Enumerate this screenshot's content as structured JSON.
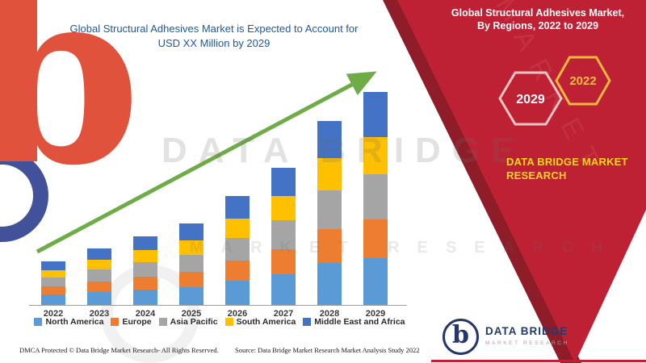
{
  "banner": {
    "band_color": "#be2134",
    "band_edge_color": "#8f1d29",
    "title_line1": "Global Structural Adhesives Market,",
    "title_line2": "By Regions, 2022 to 2029",
    "hexagons": [
      {
        "label": "2029",
        "border": "#f1c3c1",
        "text_color": "#ffffff"
      },
      {
        "label": "2022",
        "border": "#edb83e",
        "text_color": "#f3c041"
      }
    ],
    "brand_line1": "DATA BRIDGE MARKET",
    "brand_line2": "RESEARCH",
    "brand_color": "#ffd61e"
  },
  "chart": {
    "title_line1": "Global Structural Adhesives Market is Expected to Account for",
    "title_line2": "USD XX Million by 2029",
    "title_color": "#1b5aa6"
  },
  "chart_data": {
    "type": "bar",
    "stacked": true,
    "title": "Global Structural Adhesives Market is Expected to Account for USD XX Million by 2029",
    "xlabel": "",
    "ylabel": "",
    "units_note": "No value axis shown in figure (values masked as XX); series values are relative estimates of bar-segment heights",
    "categories": [
      "2022",
      "2023",
      "2024",
      "2025",
      "2026",
      "2027",
      "2028",
      "2029"
    ],
    "series": [
      {
        "name": "North America",
        "color": "#5b9bd5",
        "values": [
          13,
          16,
          19,
          22,
          30,
          38,
          52,
          58
        ]
      },
      {
        "name": "Europe",
        "color": "#ed7d31",
        "values": [
          10,
          13,
          16,
          19,
          25,
          31,
          42,
          48
        ]
      },
      {
        "name": "Asia Pacific",
        "color": "#a5a5a5",
        "values": [
          11,
          15,
          18,
          21,
          28,
          36,
          48,
          56
        ]
      },
      {
        "name": "South America",
        "color": "#ffc000",
        "values": [
          9,
          12,
          15,
          18,
          24,
          30,
          40,
          46
        ]
      },
      {
        "name": "Middle East and Africa",
        "color": "#4472c4",
        "values": [
          11,
          14,
          17,
          21,
          28,
          35,
          46,
          56
        ]
      }
    ],
    "totals": [
      54,
      70,
      85,
      101,
      135,
      170,
      228,
      264
    ],
    "legend_position": "bottom",
    "gridlines": false,
    "trend_arrow": {
      "present": true,
      "color": "#6fac47",
      "direction": "up-right"
    }
  },
  "footer": {
    "dmca": "DMCA Protected © Data Bridge Market Research- All Rights Reserved.",
    "source": "Source: Data Bridge Market Research Market Analysis Study 2022"
  },
  "logo": {
    "letter": "b",
    "name": "DATA BRIDGE",
    "subtext": "MARKET RESEARCH"
  },
  "watermark": {
    "letter": "b",
    "line1": "DATA BRIDGE",
    "line2": "MARKET RESEARCH",
    "band_text": "MARKET"
  }
}
